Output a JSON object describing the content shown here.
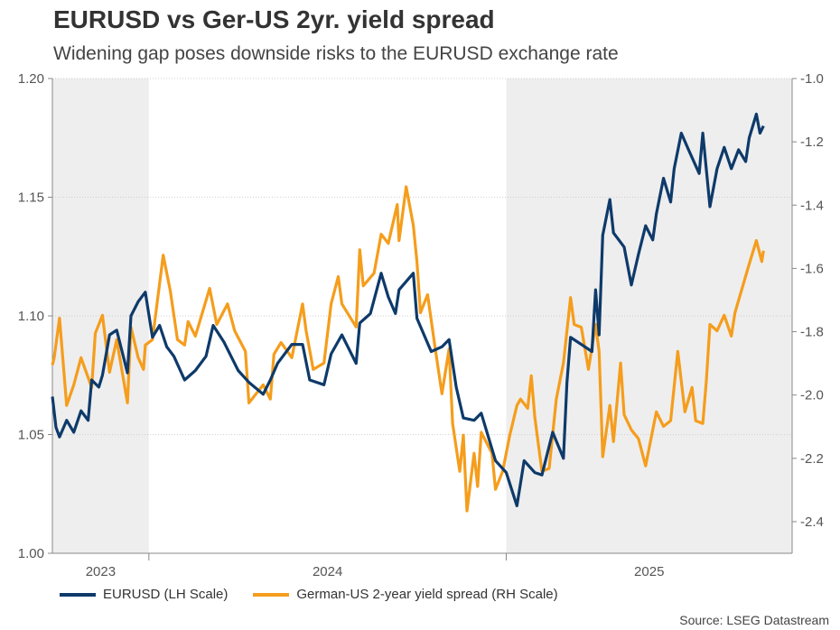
{
  "title": "EURUSD vs Ger-US 2yr. yield spread",
  "subtitle": "Widening gap poses downside risks to the EURUSD exchange rate",
  "source": "Source: LSEG Datastream",
  "chart_data": {
    "type": "line",
    "title": "EURUSD vs Ger-US 2yr. yield spread",
    "subtitle": "Widening gap poses downside risks to the EURUSD exchange rate",
    "xlim": [
      2023.73,
      2025.8
    ],
    "x_ticks": [
      2023,
      2024,
      2025
    ],
    "y_left": {
      "lim": [
        1.0,
        1.2
      ],
      "ticks": [
        "1.00",
        "1.05",
        "1.10",
        "1.15",
        "1.20"
      ]
    },
    "y_right": {
      "lim": [
        -2.5,
        -1.0
      ],
      "ticks": [
        "-2.4",
        "-2.2",
        "-2.0",
        "-1.8",
        "-1.6",
        "-1.4",
        "-1.2",
        "-1.0"
      ]
    },
    "grid": "horizontal dotted",
    "shaded_periods": [
      [
        2023.73,
        2024.0
      ],
      [
        2025.0,
        2025.8
      ]
    ],
    "legend_position": "bottom",
    "colors": {
      "eurusd": "#0e3a6a",
      "spread": "#f59d1c",
      "shade": "#eeeeee"
    },
    "series": [
      {
        "name": "EURUSD (LH Scale)",
        "axis": "left",
        "x": [
          2023.73,
          2023.74,
          2023.75,
          2023.77,
          2023.79,
          2023.81,
          2023.83,
          2023.84,
          2023.86,
          2023.87,
          2023.89,
          2023.91,
          2023.94,
          2023.95,
          2023.97,
          2023.99,
          2024.01,
          2024.03,
          2024.05,
          2024.07,
          2024.1,
          2024.13,
          2024.16,
          2024.18,
          2024.21,
          2024.23,
          2024.25,
          2024.28,
          2024.32,
          2024.34,
          2024.36,
          2024.4,
          2024.43,
          2024.45,
          2024.49,
          2024.51,
          2024.54,
          2024.58,
          2024.59,
          2024.62,
          2024.65,
          2024.67,
          2024.69,
          2024.7,
          2024.74,
          2024.75,
          2024.79,
          2024.82,
          2024.84,
          2024.86,
          2024.88,
          2024.91,
          2024.93,
          2024.97,
          2025.0,
          2025.03,
          2025.05,
          2025.08,
          2025.1,
          2025.13,
          2025.16,
          2025.17,
          2025.18,
          2025.22,
          2025.24,
          2025.25,
          2025.26,
          2025.27,
          2025.29,
          2025.3,
          2025.33,
          2025.35,
          2025.37,
          2025.39,
          2025.41,
          2025.42,
          2025.44,
          2025.46,
          2025.47,
          2025.49,
          2025.51,
          2025.54,
          2025.55,
          2025.57,
          2025.59,
          2025.61,
          2025.63,
          2025.65,
          2025.67,
          2025.68,
          2025.7,
          2025.71,
          2025.72
        ],
        "y": [
          1.066,
          1.053,
          1.049,
          1.056,
          1.051,
          1.06,
          1.056,
          1.073,
          1.07,
          1.075,
          1.092,
          1.094,
          1.076,
          1.1,
          1.106,
          1.11,
          1.091,
          1.096,
          1.087,
          1.083,
          1.073,
          1.077,
          1.083,
          1.096,
          1.089,
          1.083,
          1.077,
          1.072,
          1.067,
          1.073,
          1.08,
          1.088,
          1.088,
          1.073,
          1.071,
          1.084,
          1.092,
          1.08,
          1.097,
          1.101,
          1.118,
          1.108,
          1.101,
          1.111,
          1.118,
          1.099,
          1.085,
          1.087,
          1.09,
          1.07,
          1.057,
          1.056,
          1.059,
          1.039,
          1.034,
          1.02,
          1.039,
          1.034,
          1.033,
          1.051,
          1.04,
          1.072,
          1.091,
          1.087,
          1.085,
          1.111,
          1.092,
          1.134,
          1.149,
          1.135,
          1.129,
          1.113,
          1.126,
          1.138,
          1.132,
          1.143,
          1.158,
          1.148,
          1.162,
          1.177,
          1.17,
          1.16,
          1.177,
          1.146,
          1.162,
          1.171,
          1.162,
          1.17,
          1.165,
          1.175,
          1.185,
          1.177,
          1.18
        ]
      },
      {
        "name": "German-US 2-year yield spread (RH Scale)",
        "axis": "right",
        "x": [
          2023.73,
          2023.735,
          2023.75,
          2023.77,
          2023.79,
          2023.81,
          2023.84,
          2023.85,
          2023.87,
          2023.89,
          2023.91,
          2023.94,
          2023.95,
          2023.97,
          2023.985,
          2023.99,
          2024.01,
          2024.04,
          2024.06,
          2024.08,
          2024.1,
          2024.11,
          2024.13,
          2024.17,
          2024.19,
          2024.22,
          2024.24,
          2024.27,
          2024.28,
          2024.32,
          2024.34,
          2024.35,
          2024.37,
          2024.4,
          2024.43,
          2024.44,
          2024.46,
          2024.49,
          2024.51,
          2024.53,
          2024.54,
          2024.58,
          2024.59,
          2024.6,
          2024.63,
          2024.65,
          2024.67,
          2024.695,
          2024.7,
          2024.72,
          2024.74,
          2024.75,
          2024.76,
          2024.78,
          2024.8,
          2024.82,
          2024.84,
          2024.85,
          2024.87,
          2024.88,
          2024.89,
          2024.91,
          2024.92,
          2024.93,
          2024.96,
          2024.97,
          2024.99,
          2025.01,
          2025.03,
          2025.04,
          2025.06,
          2025.07,
          2025.08,
          2025.1,
          2025.12,
          2025.14,
          2025.16,
          2025.18,
          2025.19,
          2025.21,
          2025.23,
          2025.25,
          2025.26,
          2025.27,
          2025.29,
          2025.3,
          2025.32,
          2025.33,
          2025.35,
          2025.37,
          2025.39,
          2025.41,
          2025.42,
          2025.44,
          2025.46,
          2025.48,
          2025.5,
          2025.52,
          2025.53,
          2025.55,
          2025.56,
          2025.57,
          2025.59,
          2025.61,
          2025.63,
          2025.64,
          2025.66,
          2025.68,
          2025.7,
          2025.715,
          2025.72
        ],
        "y": [
          -1.905,
          -1.882,
          -1.757,
          -2.033,
          -1.968,
          -1.882,
          -1.976,
          -1.805,
          -1.748,
          -1.928,
          -1.825,
          -2.025,
          -1.786,
          -1.882,
          -1.919,
          -1.842,
          -1.825,
          -1.558,
          -1.672,
          -1.825,
          -1.842,
          -1.768,
          -1.814,
          -1.663,
          -1.777,
          -1.712,
          -1.797,
          -1.862,
          -2.025,
          -1.968,
          -2.013,
          -1.871,
          -1.834,
          -1.882,
          -1.712,
          -1.797,
          -1.919,
          -1.899,
          -1.712,
          -1.626,
          -1.712,
          -1.785,
          -1.541,
          -1.655,
          -1.615,
          -1.492,
          -1.521,
          -1.398,
          -1.512,
          -1.342,
          -1.464,
          -1.578,
          -1.74,
          -1.683,
          -1.842,
          -1.996,
          -1.854,
          -2.09,
          -2.241,
          -2.127,
          -2.366,
          -2.184,
          -2.289,
          -2.118,
          -2.184,
          -2.298,
          -2.241,
          -2.127,
          -2.033,
          -2.013,
          -2.042,
          -1.939,
          -2.07,
          -2.241,
          -2.232,
          -2.013,
          -1.899,
          -1.692,
          -1.777,
          -1.786,
          -1.919,
          -1.777,
          -1.862,
          -2.195,
          -2.033,
          -2.147,
          -1.899,
          -2.062,
          -2.11,
          -2.138,
          -2.224,
          -2.11,
          -2.053,
          -2.099,
          -2.081,
          -1.862,
          -2.053,
          -1.976,
          -2.081,
          -2.09,
          -1.956,
          -1.777,
          -1.797,
          -1.748,
          -1.814,
          -1.74,
          -1.663,
          -1.586,
          -1.512,
          -1.578,
          -1.544
        ]
      }
    ]
  }
}
